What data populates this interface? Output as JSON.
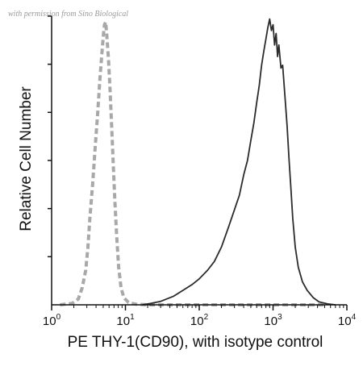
{
  "watermark": "with permission from Sino Biological",
  "chart_data": {
    "type": "histogram",
    "xlabel": "PE THY-1(CD90), with isotype control",
    "ylabel": "Relative Cell Number",
    "xscale": "log",
    "xlim": [
      1,
      10000
    ],
    "ylim": [
      0,
      1
    ],
    "x_ticks": [
      {
        "base": "10",
        "exp": "0",
        "value": 1
      },
      {
        "base": "10",
        "exp": "1",
        "value": 10
      },
      {
        "base": "10",
        "exp": "2",
        "value": 100
      },
      {
        "base": "10",
        "exp": "3",
        "value": 1000
      },
      {
        "base": "10",
        "exp": "4",
        "value": 10000
      }
    ],
    "y_ticks_count": 6,
    "grid": false,
    "series": [
      {
        "color": "#a8a8a8",
        "style": "dashed",
        "points": [
          [
            1.3,
            0
          ],
          [
            1.9,
            0.005
          ],
          [
            2.3,
            0.02
          ],
          [
            2.6,
            0.06
          ],
          [
            2.9,
            0.12
          ],
          [
            3.1,
            0.2
          ],
          [
            3.3,
            0.3
          ],
          [
            3.6,
            0.42
          ],
          [
            3.9,
            0.55
          ],
          [
            4.2,
            0.66
          ],
          [
            4.5,
            0.78
          ],
          [
            4.8,
            0.87
          ],
          [
            5.0,
            0.93
          ],
          [
            5.2,
            0.97
          ],
          [
            5.4,
            0.98
          ],
          [
            5.6,
            0.93
          ],
          [
            5.9,
            0.85
          ],
          [
            6.2,
            0.74
          ],
          [
            6.5,
            0.62
          ],
          [
            6.8,
            0.5
          ],
          [
            7.2,
            0.36
          ],
          [
            7.6,
            0.24
          ],
          [
            8.1,
            0.13
          ],
          [
            8.7,
            0.06
          ],
          [
            9.5,
            0.025
          ],
          [
            11,
            0.008
          ],
          [
            14,
            0.002
          ],
          [
            20,
            0
          ],
          [
            40,
            0
          ],
          [
            100,
            0
          ],
          [
            300,
            0
          ],
          [
            1000,
            0
          ],
          [
            3000,
            0
          ],
          [
            5000,
            0
          ]
        ]
      },
      {
        "color": "#2b2b2b",
        "style": "solid",
        "points": [
          [
            17,
            0
          ],
          [
            22,
            0.005
          ],
          [
            30,
            0.012
          ],
          [
            45,
            0.03
          ],
          [
            60,
            0.05
          ],
          [
            80,
            0.07
          ],
          [
            100,
            0.09
          ],
          [
            130,
            0.12
          ],
          [
            160,
            0.15
          ],
          [
            200,
            0.2
          ],
          [
            250,
            0.27
          ],
          [
            300,
            0.33
          ],
          [
            350,
            0.38
          ],
          [
            400,
            0.45
          ],
          [
            450,
            0.5
          ],
          [
            500,
            0.57
          ],
          [
            550,
            0.63
          ],
          [
            600,
            0.7
          ],
          [
            650,
            0.76
          ],
          [
            700,
            0.83
          ],
          [
            750,
            0.88
          ],
          [
            800,
            0.92
          ],
          [
            850,
            0.96
          ],
          [
            900,
            0.99
          ],
          [
            950,
            0.95
          ],
          [
            1000,
            0.97
          ],
          [
            1050,
            0.9
          ],
          [
            1100,
            0.94
          ],
          [
            1150,
            0.86
          ],
          [
            1200,
            0.9
          ],
          [
            1280,
            0.82
          ],
          [
            1350,
            0.83
          ],
          [
            1450,
            0.72
          ],
          [
            1550,
            0.62
          ],
          [
            1650,
            0.5
          ],
          [
            1750,
            0.4
          ],
          [
            1850,
            0.3
          ],
          [
            2000,
            0.2
          ],
          [
            2200,
            0.13
          ],
          [
            2500,
            0.08
          ],
          [
            2900,
            0.05
          ],
          [
            3500,
            0.025
          ],
          [
            4200,
            0.01
          ],
          [
            5500,
            0.003
          ],
          [
            7000,
            0
          ]
        ]
      }
    ]
  }
}
